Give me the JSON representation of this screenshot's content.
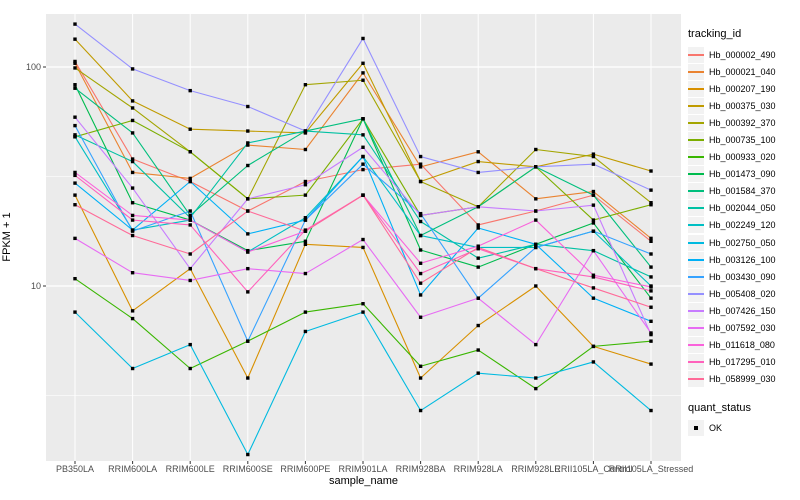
{
  "figure": {
    "background": "#ffffff",
    "panel_bg": "#ebebeb",
    "grid_color": "#ffffff",
    "tick_color": "#333333",
    "tick_label_color": "#4d4d4d",
    "point_color": "#000000"
  },
  "axes": {
    "x_title": "sample_name",
    "y_title": "FPKM + 1",
    "y_ticks": [
      {
        "label": "100",
        "value": 100
      },
      {
        "label": "10",
        "value": 10
      }
    ]
  },
  "legend": {
    "tracking_title": "tracking_id",
    "quant_title": "quant_status",
    "quant_items": [
      {
        "label": "OK"
      }
    ]
  },
  "chart_data": {
    "type": "line",
    "title": "",
    "xlabel": "sample_name",
    "ylabel": "FPKM + 1",
    "y_scale": "log10",
    "ylim": [
      1.5,
      180
    ],
    "grid": true,
    "legend_position": "right",
    "point_shape": "filled-black-square (quant_status OK)",
    "categories": [
      "PB350LA",
      "RRIM600LA",
      "RRIM600LE",
      "RRIM600SE",
      "RRIM600PE",
      "RRIM901LA",
      "RRIM928BA",
      "RRIM928LA",
      "RRIM928LE",
      "RRII105LA_Control",
      "RRII105LA_Stressed"
    ],
    "series": [
      {
        "name": "Hb_000002_490",
        "color": "#F8766D",
        "values": [
          106,
          38,
          30,
          22,
          30,
          34,
          36,
          19,
          22,
          26,
          16
        ]
      },
      {
        "name": "Hb_000021_040",
        "color": "#EA8331",
        "values": [
          104,
          33,
          31,
          44,
          42,
          94,
          35,
          41,
          25,
          27,
          16.5
        ]
      },
      {
        "name": "Hb_000207_190",
        "color": "#D89000",
        "values": [
          26,
          7.7,
          12,
          3.8,
          15.5,
          15,
          3.8,
          6.6,
          10,
          5.3,
          4.4
        ]
      },
      {
        "name": "Hb_000375_030",
        "color": "#C09B00",
        "values": [
          134,
          70,
          52,
          51,
          50,
          104,
          30,
          37,
          35,
          40,
          33.5
        ]
      },
      {
        "name": "Hb_000392_370",
        "color": "#A3A500",
        "values": [
          99,
          65,
          41,
          25,
          83,
          87,
          30,
          23,
          42,
          39,
          24
        ]
      },
      {
        "name": "Hb_000735_100",
        "color": "#7CAE00",
        "values": [
          48,
          57,
          41,
          25,
          26,
          58,
          21,
          23,
          35,
          20,
          23.5
        ]
      },
      {
        "name": "Hb_000933_020",
        "color": "#39B600",
        "values": [
          10.8,
          7.1,
          4.2,
          5.6,
          7.6,
          8.3,
          4.3,
          5.1,
          3.4,
          5.3,
          5.6
        ]
      },
      {
        "name": "Hb_001473_090",
        "color": "#00BB4E",
        "values": [
          83,
          24,
          20,
          14.5,
          16,
          58,
          14.6,
          12.2,
          15.5,
          19.4,
          8.8
        ]
      },
      {
        "name": "Hb_001584_370",
        "color": "#00BF7D",
        "values": [
          80,
          50,
          21,
          35.5,
          51,
          58,
          17,
          23,
          35,
          26,
          12.2
        ]
      },
      {
        "name": "Hb_002044_050",
        "color": "#00C1A3",
        "values": [
          49,
          37,
          20.5,
          45,
          51,
          49,
          19.7,
          13.4,
          15.5,
          14.5,
          11
        ]
      },
      {
        "name": "Hb_002249_120",
        "color": "#00BFC4",
        "values": [
          48,
          18,
          20,
          14.3,
          20.5,
          39,
          17,
          15,
          15,
          17.8,
          10
        ]
      },
      {
        "name": "Hb_002750_050",
        "color": "#00BAE0",
        "values": [
          7.6,
          4.2,
          5.4,
          1.7,
          6.2,
          7.6,
          2.7,
          4.0,
          3.8,
          4.5,
          2.7
        ]
      },
      {
        "name": "Hb_003126_100",
        "color": "#00B0F6",
        "values": [
          29.5,
          18,
          30,
          17.3,
          20,
          39,
          9.1,
          18.4,
          15.5,
          8.8,
          6.9
        ]
      },
      {
        "name": "Hb_003430_090",
        "color": "#35A2FF",
        "values": [
          54,
          17.8,
          22,
          5.6,
          20,
          36,
          21.4,
          8.8,
          15,
          17.8,
          14
        ]
      },
      {
        "name": "Hb_005408_020",
        "color": "#9590FF",
        "values": [
          157,
          98,
          78,
          66,
          51,
          135,
          39,
          33,
          35,
          36,
          27.4
        ]
      },
      {
        "name": "Hb_007426_150",
        "color": "#C77CFF",
        "values": [
          59,
          28,
          12,
          25,
          29,
          43,
          21,
          23,
          22,
          23.4,
          6
        ]
      },
      {
        "name": "Hb_007592_030",
        "color": "#E76BF3",
        "values": [
          16.5,
          11.5,
          10.6,
          12,
          11.4,
          16.3,
          7.2,
          8.8,
          5.4,
          14.5,
          6.1
        ]
      },
      {
        "name": "Hb_011618_080",
        "color": "#FA62DB",
        "values": [
          33,
          21,
          20,
          14.3,
          17.8,
          26,
          12.7,
          15.2,
          20,
          11.2,
          9.9
        ]
      },
      {
        "name": "Hb_017295_010",
        "color": "#FF62BC",
        "values": [
          32,
          20,
          19,
          9.4,
          18,
          26,
          11.4,
          14.8,
          12,
          11,
          9.5
        ]
      },
      {
        "name": "Hb_058999_030",
        "color": "#FF6A98",
        "values": [
          23.5,
          17,
          14,
          22,
          17.8,
          26,
          10.3,
          15,
          12,
          9.8,
          8
        ]
      }
    ]
  }
}
